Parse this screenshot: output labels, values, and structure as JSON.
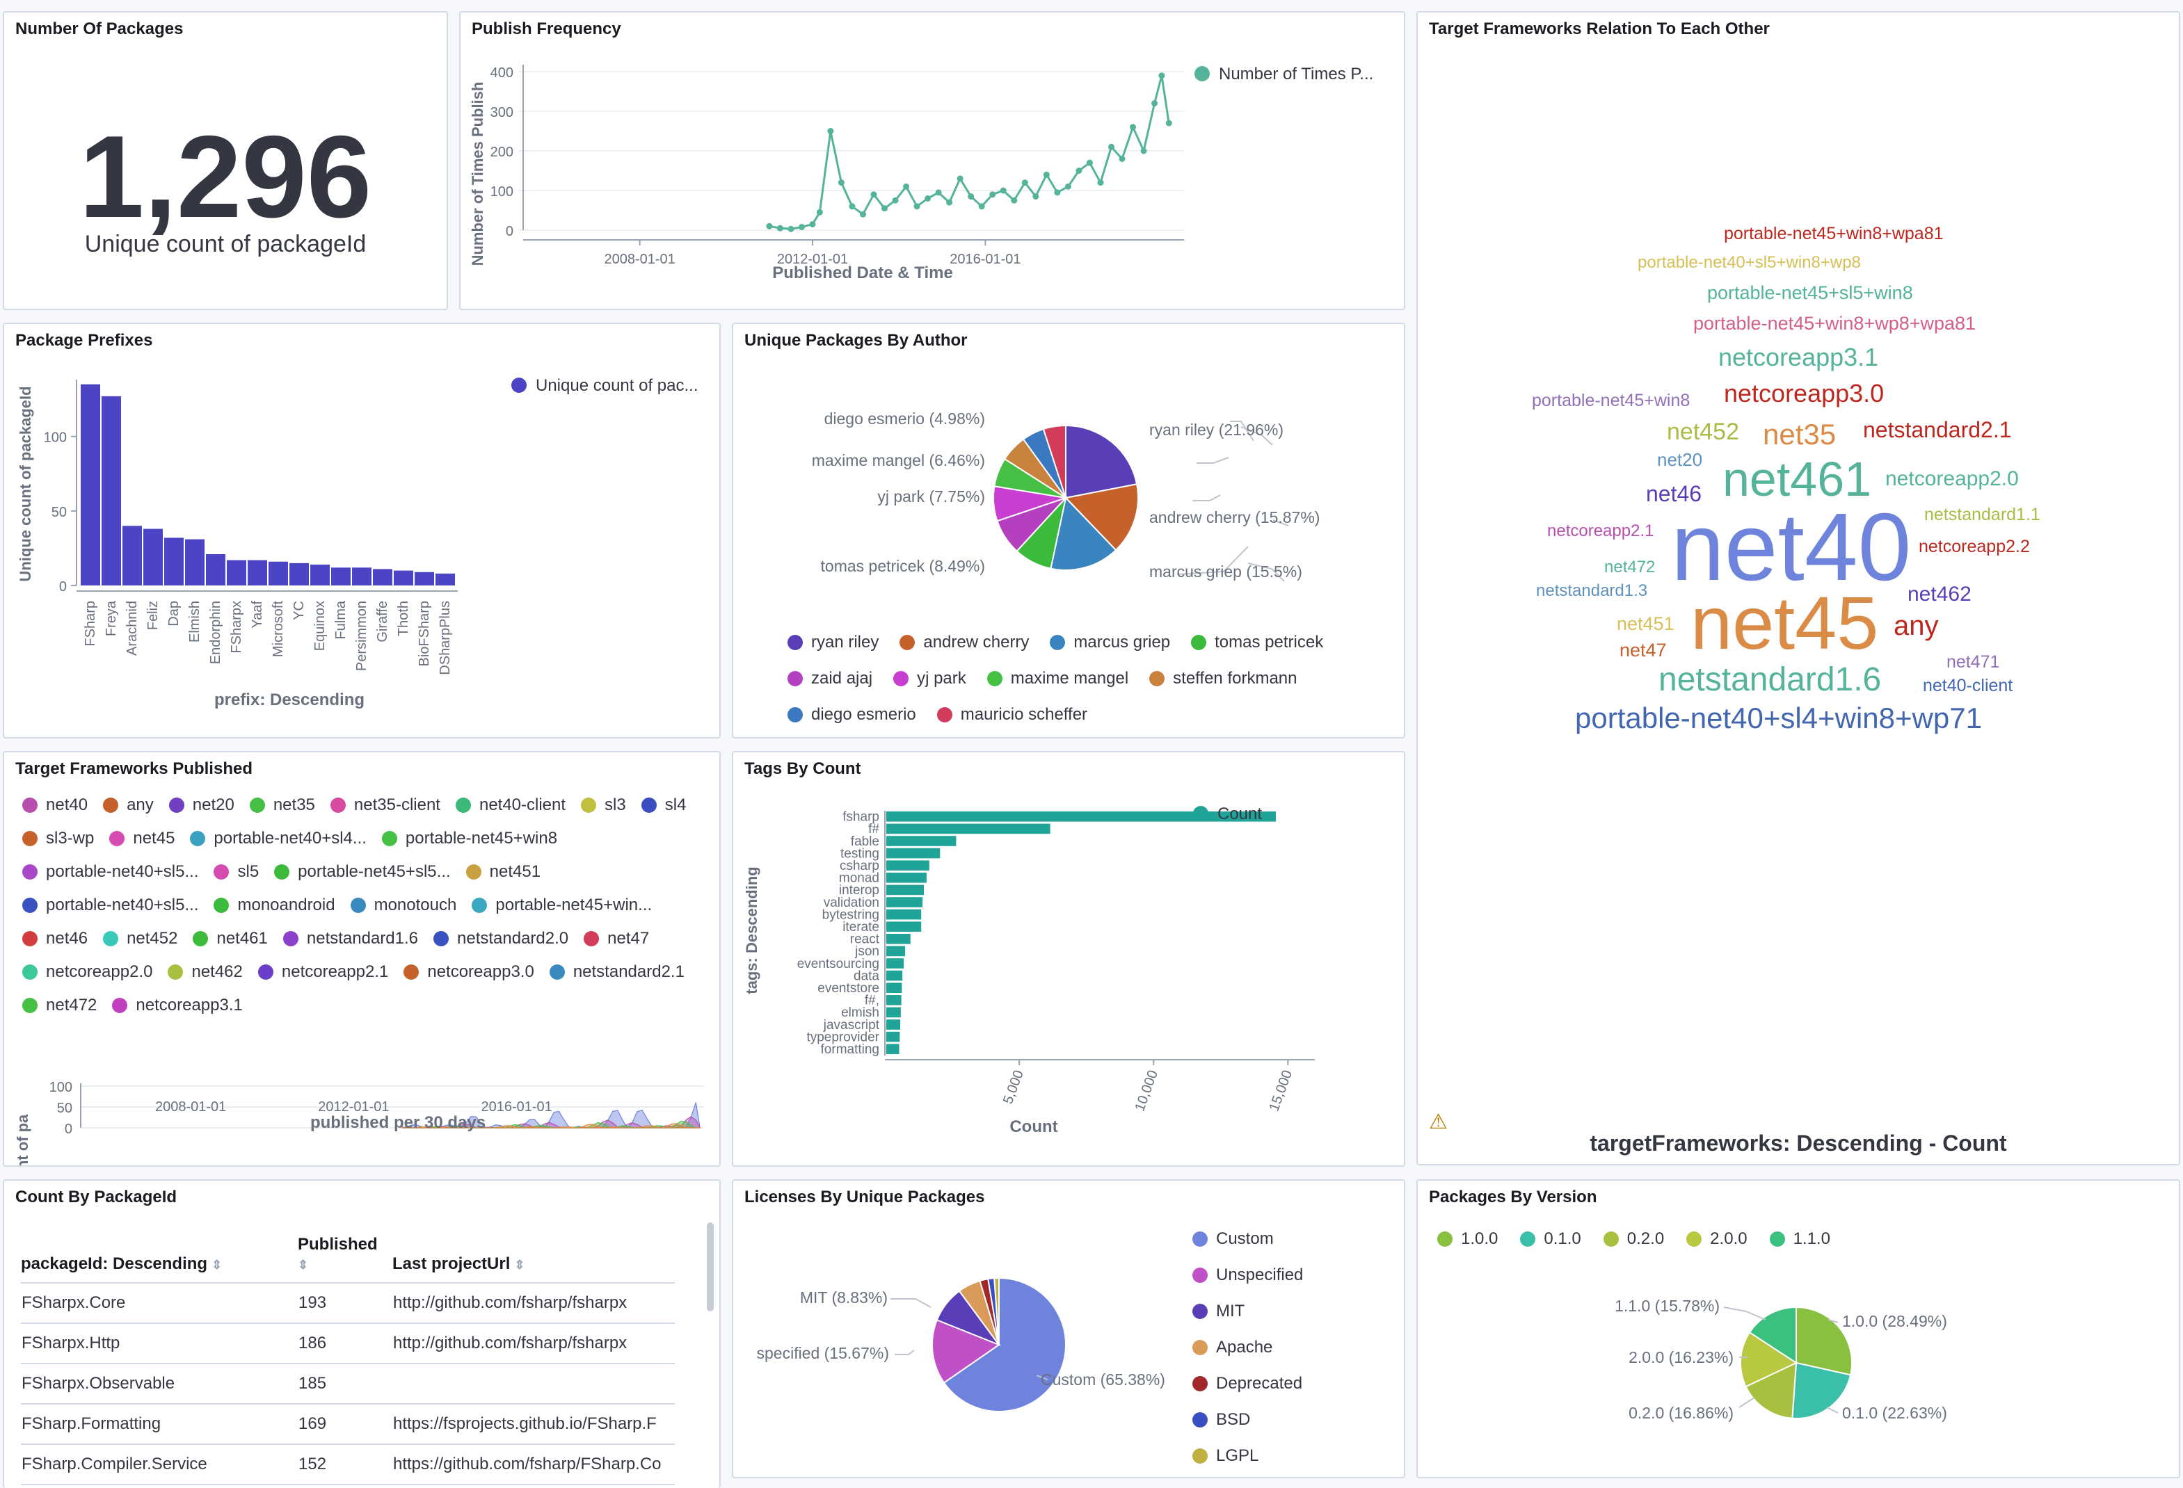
{
  "num_packages": {
    "title": "Number Of Packages",
    "value": "1,296",
    "label": "Unique count of packageId"
  },
  "publish_freq": {
    "title": "Publish Frequency",
    "ylabel": "Number of Times Publish",
    "xlabel": "Published Date & Time",
    "legend": "Number of Times P...",
    "color": "#54b399",
    "x_ticks": [
      "2008-01-01",
      "2012-01-01",
      "2016-01-01"
    ],
    "y_ticks": [
      "0",
      "100",
      "200",
      "300",
      "400"
    ]
  },
  "tf_relation": {
    "title": "Target Frameworks Relation To Each Other",
    "footer": "targetFrameworks: Descending - Count",
    "warning_icon": "warning-icon",
    "words": [
      {
        "t": "portable-net45+win8+wpa81",
        "c": "#bd271e"
      },
      {
        "t": "portable-net40+sl5+win8+wp8",
        "c": "#d6bf57"
      },
      {
        "t": "portable-net45+sl5+win8",
        "c": "#54b399"
      },
      {
        "t": "portable-net45+win8+wp8+wpa81",
        "c": "#d36086"
      },
      {
        "t": "netcoreapp3.1",
        "c": "#54b399"
      },
      {
        "t": "portable-net45+win8",
        "c": "#9170b8"
      },
      {
        "t": "netcoreapp3.0",
        "c": "#bd271e"
      },
      {
        "t": "net452",
        "c": "#aabb44"
      },
      {
        "t": "net35",
        "c": "#da8b45"
      },
      {
        "t": "netstandard2.1",
        "c": "#bd271e"
      },
      {
        "t": "net20",
        "c": "#6092c0"
      },
      {
        "t": "net461",
        "c": "#54b399"
      },
      {
        "t": "netcoreapp2.0",
        "c": "#54b399"
      },
      {
        "t": "net46",
        "c": "#5a3eb8"
      },
      {
        "t": "netstandard1.1",
        "c": "#aabb44"
      },
      {
        "t": "netcoreapp2.1",
        "c": "#b64fad"
      },
      {
        "t": "net40",
        "c": "#6e83dc"
      },
      {
        "t": "netcoreapp2.2",
        "c": "#bd271e"
      },
      {
        "t": "net472",
        "c": "#54b399"
      },
      {
        "t": "netstandard1.3",
        "c": "#6092c0"
      },
      {
        "t": "net462",
        "c": "#5a3eb8"
      },
      {
        "t": "net451",
        "c": "#d6bf57"
      },
      {
        "t": "net45",
        "c": "#da8b45"
      },
      {
        "t": "any",
        "c": "#bd271e"
      },
      {
        "t": "net47",
        "c": "#c6612c"
      },
      {
        "t": "net471",
        "c": "#9170b8"
      },
      {
        "t": "netstandard1.6",
        "c": "#54b399"
      },
      {
        "t": "net40-client",
        "c": "#4266b0"
      },
      {
        "t": "portable-net40+sl4+win8+wp71",
        "c": "#4266b0"
      }
    ]
  },
  "prefixes": {
    "title": "Package Prefixes",
    "ylabel": "Unique count of packageId",
    "xlabel": "prefix: Descending",
    "legend": "Unique count of pac...",
    "color": "#4b44c4",
    "y_ticks": [
      "0",
      "50",
      "100"
    ]
  },
  "by_author": {
    "title": "Unique Packages By Author",
    "callouts": [
      "ryan riley (21.96%)",
      "andrew cherry (15.87%)",
      "marcus griep (15.5%)",
      "tomas petricek (8.49%)",
      "yj park (7.75%)",
      "maxime mangel (6.46%)",
      "diego esmerio (4.98%)"
    ],
    "legend": [
      {
        "name": "ryan riley",
        "c": "#5a3eb8"
      },
      {
        "name": "andrew cherry",
        "c": "#c6612c"
      },
      {
        "name": "marcus griep",
        "c": "#3a85c0"
      },
      {
        "name": "tomas petricek",
        "c": "#3cba3c"
      },
      {
        "name": "zaid ajaj",
        "c": "#b440c0"
      },
      {
        "name": "yj park",
        "c": "#c83ed0"
      },
      {
        "name": "maxime mangel",
        "c": "#45c045"
      },
      {
        "name": "steffen forkmann",
        "c": "#c8823e"
      },
      {
        "name": "diego esmerio",
        "c": "#3a78c0"
      },
      {
        "name": "mauricio scheffer",
        "c": "#d23c5a"
      }
    ]
  },
  "tf_published": {
    "title": "Target Frameworks Published",
    "ylabel": "count of pa",
    "xlabel": "published per 30 days",
    "x_ticks": [
      "2008-01-01",
      "2012-01-01",
      "2016-01-01"
    ],
    "y_ticks": [
      "0",
      "50",
      "100"
    ],
    "legend": [
      {
        "name": "net40",
        "c": "#b64fad"
      },
      {
        "name": "any",
        "c": "#c6612c"
      },
      {
        "name": "net20",
        "c": "#7040c0"
      },
      {
        "name": "net35",
        "c": "#45c045"
      },
      {
        "name": "net35-client",
        "c": "#d64ba0"
      },
      {
        "name": "net40-client",
        "c": "#3cb878"
      },
      {
        "name": "sl3",
        "c": "#c0c040"
      },
      {
        "name": "sl4",
        "c": "#3a4ec0"
      },
      {
        "name": "sl3-wp",
        "c": "#c6612c"
      },
      {
        "name": "net45",
        "c": "#d64bb0"
      },
      {
        "name": "portable-net40+sl4...",
        "c": "#3aa0c0"
      },
      {
        "name": "portable-net45+win8",
        "c": "#45c045"
      },
      {
        "name": "portable-net40+sl5...",
        "c": "#a848c8"
      },
      {
        "name": "sl5",
        "c": "#d64bb0"
      },
      {
        "name": "portable-net45+sl5...",
        "c": "#3cba3c"
      },
      {
        "name": "net451",
        "c": "#c8a040"
      },
      {
        "name": "portable-net40+sl5...",
        "c": "#3a52c0"
      },
      {
        "name": "monoandroid",
        "c": "#3cba3c"
      },
      {
        "name": "monotouch",
        "c": "#3a8ac0"
      },
      {
        "name": "portable-net45+win...",
        "c": "#3aa8c0"
      },
      {
        "name": "net46",
        "c": "#d23c3c"
      },
      {
        "name": "net452",
        "c": "#3ac8b8"
      },
      {
        "name": "net461",
        "c": "#3cba3c"
      },
      {
        "name": "netstandard1.6",
        "c": "#8a40c8"
      },
      {
        "name": "netstandard2.0",
        "c": "#3a52c0"
      },
      {
        "name": "net47",
        "c": "#d23c5a"
      },
      {
        "name": "netcoreapp2.0",
        "c": "#3cc89a"
      },
      {
        "name": "net462",
        "c": "#a8c040"
      },
      {
        "name": "netcoreapp2.1",
        "c": "#6a3ec8"
      },
      {
        "name": "netcoreapp3.0",
        "c": "#c6612c"
      },
      {
        "name": "netstandard2.1",
        "c": "#3a8ac0"
      },
      {
        "name": "net472",
        "c": "#45c045"
      },
      {
        "name": "netcoreapp3.1",
        "c": "#c040c0"
      }
    ]
  },
  "tags": {
    "title": "Tags By Count",
    "ylabel": "tags: Descending",
    "xlabel": "Count",
    "legend": "Count",
    "color": "#20a497",
    "x_ticks": [
      "5,000",
      "10,000",
      "15,000"
    ]
  },
  "count_pkg": {
    "title": "Count By PackageId",
    "headers": [
      "packageId: Descending",
      "Published",
      "Last projectUrl"
    ],
    "rows": [
      [
        "FSharpx.Core",
        "193",
        "http://github.com/fsharp/fsharpx"
      ],
      [
        "FSharpx.Http",
        "186",
        "http://github.com/fsharp/fsharpx"
      ],
      [
        "FSharpx.Observable",
        "185",
        ""
      ],
      [
        "FSharp.Formatting",
        "169",
        "https://fsprojects.github.io/FSharp.F"
      ],
      [
        "FSharp.Compiler.Service",
        "152",
        "https://github.com/fsharp/FSharp.Co"
      ]
    ]
  },
  "licenses": {
    "title": "Licenses By Unique Packages",
    "callouts": [
      "MIT (8.83%)",
      "specified (15.67%)",
      "Custom (65.38%)"
    ],
    "legend": [
      {
        "name": "Custom",
        "c": "#6e83dc"
      },
      {
        "name": "Unspecified",
        "c": "#c050c8"
      },
      {
        "name": "MIT",
        "c": "#5a3eb8"
      },
      {
        "name": "Apache",
        "c": "#da9b5a"
      },
      {
        "name": "Deprecated",
        "c": "#a02828"
      },
      {
        "name": "BSD",
        "c": "#3a4ec0"
      },
      {
        "name": "LGPL",
        "c": "#c0b040"
      }
    ]
  },
  "versions": {
    "title": "Packages By Version",
    "callouts": [
      "1.0.0 (28.49%)",
      "0.1.0 (22.63%)",
      "0.2.0 (16.86%)",
      "2.0.0 (16.23%)",
      "1.1.0 (15.78%)"
    ],
    "legend": [
      {
        "name": "1.0.0",
        "c": "#8ac040"
      },
      {
        "name": "0.1.0",
        "c": "#3ac0a8"
      },
      {
        "name": "0.2.0",
        "c": "#a8c040"
      },
      {
        "name": "2.0.0",
        "c": "#b8c840"
      },
      {
        "name": "1.1.0",
        "c": "#3cc080"
      }
    ]
  },
  "chart_data": [
    {
      "type": "line",
      "title": "Publish Frequency",
      "xlabel": "Published Date & Time",
      "ylabel": "Number of Times Publish",
      "ylim": [
        0,
        400
      ],
      "series": [
        {
          "name": "Number of Times P...",
          "x": [
            "2011-01",
            "2011-04",
            "2011-07",
            "2011-10",
            "2012-01",
            "2012-03",
            "2012-06",
            "2012-09",
            "2012-12",
            "2013-03",
            "2013-06",
            "2013-09",
            "2013-12",
            "2014-03",
            "2014-06",
            "2014-09",
            "2014-12",
            "2015-03",
            "2015-06",
            "2015-09",
            "2015-12",
            "2016-03",
            "2016-06",
            "2016-09",
            "2016-12",
            "2017-03",
            "2017-06",
            "2017-09",
            "2017-12",
            "2018-03",
            "2018-06",
            "2018-09",
            "2018-12",
            "2019-03",
            "2019-06",
            "2019-09",
            "2019-12",
            "2020-02",
            "2020-04"
          ],
          "values": [
            10,
            5,
            3,
            8,
            15,
            45,
            250,
            120,
            60,
            40,
            90,
            55,
            75,
            110,
            60,
            80,
            95,
            70,
            130,
            85,
            60,
            90,
            100,
            75,
            120,
            85,
            140,
            95,
            110,
            150,
            170,
            120,
            210,
            180,
            260,
            200,
            320,
            390,
            270
          ]
        }
      ]
    },
    {
      "type": "bar",
      "title": "Package Prefixes",
      "xlabel": "prefix: Descending",
      "ylabel": "Unique count of packageId",
      "ylim": [
        0,
        140
      ],
      "categories": [
        "FSharp",
        "Freya",
        "Arachnid",
        "Feliz",
        "Dap",
        "Elmish",
        "Endorphin",
        "FSharpx",
        "Yaaf",
        "Microsoft",
        "YC",
        "Equinox",
        "Fulma",
        "Persimmon",
        "Giraffe",
        "Thoth",
        "BioFSharp",
        "DSharpPlus"
      ],
      "values": [
        135,
        127,
        40,
        38,
        32,
        31,
        21,
        17,
        17,
        16,
        15,
        14,
        12,
        12,
        11,
        10,
        9,
        8
      ]
    },
    {
      "type": "pie",
      "title": "Unique Packages By Author",
      "categories": [
        "ryan riley",
        "andrew cherry",
        "marcus griep",
        "tomas petricek",
        "zaid ajaj",
        "yj park",
        "maxime mangel",
        "steffen forkmann",
        "diego esmerio",
        "mauricio scheffer"
      ],
      "values": [
        21.96,
        15.87,
        15.5,
        8.49,
        8.0,
        7.75,
        6.46,
        6.0,
        4.98,
        4.99
      ]
    },
    {
      "type": "area",
      "title": "Target Frameworks Published",
      "xlabel": "published per 30 days",
      "ylim": [
        0,
        100
      ]
    },
    {
      "type": "bar",
      "title": "Tags By Count",
      "xlabel": "Count",
      "ylabel": "tags: Descending",
      "xlim": [
        0,
        16000
      ],
      "categories": [
        "fsharp",
        "f#",
        "fable",
        "testing",
        "csharp",
        "monad",
        "interop",
        "validation",
        "bytestring",
        "iterate",
        "react",
        "json",
        "eventsourcing",
        "data",
        "eventstore",
        "f#,",
        "elmish",
        "javascript",
        "typeprovider",
        "formatting"
      ],
      "values": [
        14500,
        6100,
        2600,
        2000,
        1600,
        1500,
        1400,
        1350,
        1300,
        1300,
        900,
        700,
        650,
        600,
        580,
        560,
        540,
        520,
        500,
        480
      ]
    },
    {
      "type": "pie",
      "title": "Licenses By Unique Packages",
      "categories": [
        "Custom",
        "Unspecified",
        "MIT",
        "Apache",
        "Deprecated",
        "BSD",
        "LGPL"
      ],
      "values": [
        65.38,
        15.67,
        8.83,
        5.5,
        2.0,
        1.5,
        1.12
      ]
    },
    {
      "type": "pie",
      "title": "Packages By Version",
      "categories": [
        "1.0.0",
        "0.1.0",
        "0.2.0",
        "2.0.0",
        "1.1.0"
      ],
      "values": [
        28.49,
        22.63,
        16.86,
        16.23,
        15.78
      ]
    }
  ]
}
